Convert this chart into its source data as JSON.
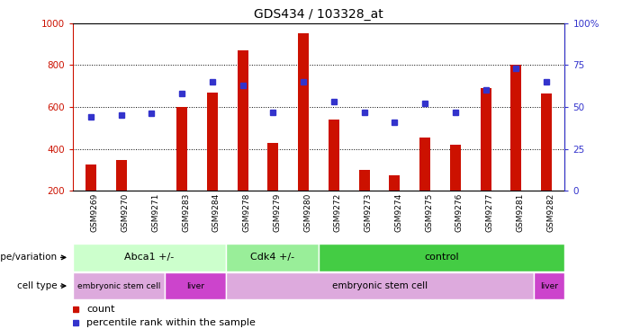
{
  "title": "GDS434 / 103328_at",
  "samples": [
    "GSM9269",
    "GSM9270",
    "GSM9271",
    "GSM9283",
    "GSM9284",
    "GSM9278",
    "GSM9279",
    "GSM9280",
    "GSM9272",
    "GSM9273",
    "GSM9274",
    "GSM9275",
    "GSM9276",
    "GSM9277",
    "GSM9281",
    "GSM9282"
  ],
  "counts": [
    325,
    345,
    200,
    600,
    670,
    870,
    430,
    950,
    540,
    300,
    275,
    455,
    420,
    690,
    800,
    665
  ],
  "percentiles": [
    44,
    45,
    46,
    58,
    65,
    63,
    47,
    65,
    53,
    47,
    41,
    52,
    47,
    60,
    73,
    65
  ],
  "ylim_left": [
    200,
    1000
  ],
  "ylim_right": [
    0,
    100
  ],
  "yticks_left": [
    200,
    400,
    600,
    800,
    1000
  ],
  "yticks_right": [
    0,
    25,
    50,
    75,
    100
  ],
  "bar_color": "#cc1100",
  "dot_color": "#3333cc",
  "bg_color": "#ffffff",
  "genotype_groups": [
    {
      "label": "Abca1 +/-",
      "start": 0,
      "end": 5,
      "color": "#ccffcc"
    },
    {
      "label": "Cdk4 +/-",
      "start": 5,
      "end": 8,
      "color": "#99ee99"
    },
    {
      "label": "control",
      "start": 8,
      "end": 16,
      "color": "#44cc44"
    }
  ],
  "celltype_groups": [
    {
      "label": "embryonic stem cell",
      "start": 0,
      "end": 3,
      "color": "#ddaadd"
    },
    {
      "label": "liver",
      "start": 3,
      "end": 5,
      "color": "#cc44cc"
    },
    {
      "label": "embryonic stem cell",
      "start": 5,
      "end": 15,
      "color": "#ddaadd"
    },
    {
      "label": "liver",
      "start": 15,
      "end": 16,
      "color": "#cc44cc"
    }
  ],
  "legend_count_label": "count",
  "legend_pct_label": "percentile rank within the sample",
  "xlabel_genotype": "genotype/variation",
  "xlabel_celltype": "cell type"
}
